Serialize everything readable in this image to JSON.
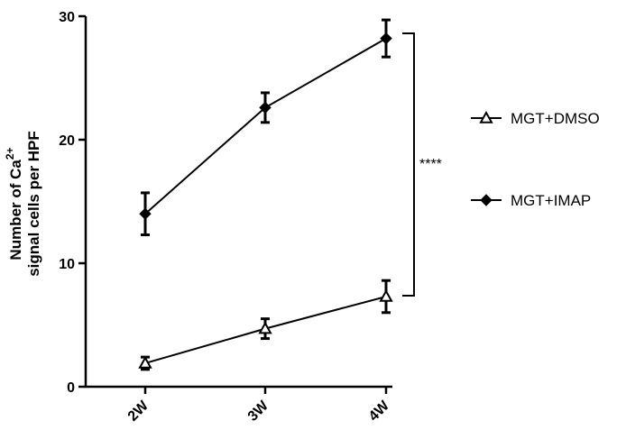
{
  "chart_data": {
    "type": "line",
    "categories": [
      "2W",
      "3W",
      "4W"
    ],
    "ylabel": {
      "prefix": "Number of Ca",
      "superscript": "2+",
      "line2": "signal cells per HPF"
    },
    "ylim": [
      0,
      30
    ],
    "yticks": [
      "0",
      "10",
      "20",
      "30"
    ],
    "series": [
      {
        "name": "MGT+DMSO",
        "marker": "triangle-open",
        "values": [
          1.9,
          4.7,
          7.3
        ],
        "errors": [
          0.5,
          0.8,
          1.3
        ]
      },
      {
        "name": "MGT+IMAP",
        "marker": "diamond-filled",
        "values": [
          14.0,
          22.6,
          28.2
        ],
        "errors": [
          1.7,
          1.2,
          1.5
        ]
      }
    ],
    "annotation": "****",
    "legend_position": "right",
    "grid": false
  }
}
